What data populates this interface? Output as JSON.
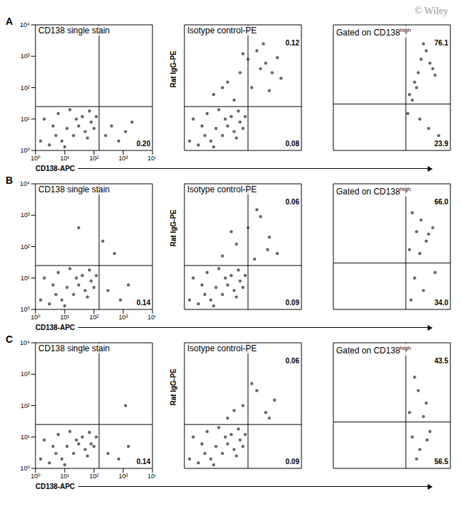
{
  "watermark": "© Wiley",
  "panel_labels": [
    "A",
    "B",
    "C"
  ],
  "chart_data": [
    {
      "type": "scatter",
      "title": "CD138 single stain",
      "x_label": "CD138-APC",
      "log": true,
      "color": "#333333",
      "xlim": [
        1,
        10000
      ],
      "ylim": [
        1,
        10000
      ],
      "xticks": [
        {
          "value": 1,
          "label": "10⁰"
        },
        {
          "value": 10,
          "label": "10¹"
        },
        {
          "value": 100,
          "label": "10²"
        },
        {
          "value": 1000,
          "label": "10³"
        },
        {
          "value": 10000,
          "label": "10⁴"
        }
      ],
      "yticks": [
        {
          "value": 1,
          "label": "10⁰"
        },
        {
          "value": 10,
          "label": "10¹"
        },
        {
          "value": 100,
          "label": "10²"
        },
        {
          "value": 1000,
          "label": "10³"
        },
        {
          "value": 10000,
          "label": "10⁴"
        }
      ],
      "gates": {
        "x": 150,
        "y": 25
      },
      "quadrant_values": {
        "lower_right": {
          "value": 0.2,
          "label": "0.20"
        }
      },
      "x": [
        1.5,
        3,
        5,
        8,
        12,
        20,
        30,
        50,
        80,
        120,
        2,
        6,
        15,
        40,
        70,
        10,
        25,
        100,
        4,
        60,
        250,
        400,
        700,
        1200,
        2000
      ],
      "y": [
        2,
        1.5,
        3,
        2,
        5,
        3,
        6,
        4,
        8,
        12,
        10,
        15,
        20,
        12,
        18,
        1.3,
        10,
        5,
        6,
        2.5,
        3,
        6,
        2,
        4,
        8
      ]
    },
    {
      "type": "scatter",
      "title": "Isotype control-PE",
      "y_label": "Rat IgG-PE",
      "log": true,
      "tick_labels": false,
      "color": "#333333",
      "xlim": [
        1,
        10000
      ],
      "ylim": [
        1,
        10000
      ],
      "xticks": [
        1,
        10,
        100,
        1000,
        10000
      ],
      "yticks": [
        1,
        10,
        100,
        1000,
        10000
      ],
      "gates": {
        "x": 150,
        "y": 25
      },
      "quadrant_values": {
        "upper_right": 0.12,
        "lower_right": 0.08
      },
      "x": [
        1.5,
        3,
        5,
        8,
        12,
        20,
        30,
        50,
        80,
        120,
        2,
        6,
        15,
        40,
        70,
        10,
        25,
        100,
        4,
        60,
        10,
        30,
        80,
        150,
        300,
        600,
        1000,
        2000,
        50,
        200,
        500,
        1500,
        20,
        100,
        400,
        800
      ],
      "y": [
        2,
        1.5,
        3,
        2,
        5,
        3,
        6,
        4,
        8,
        12,
        10,
        15,
        20,
        12,
        18,
        1.3,
        10,
        5,
        6,
        2.5,
        60,
        150,
        300,
        800,
        1500,
        600,
        300,
        200,
        40,
        100,
        2500,
        900,
        100,
        1200,
        400,
        80
      ]
    },
    {
      "type": "scatter",
      "title": "Gated on CD138",
      "title_superscript": "high",
      "log": true,
      "tick_labels": false,
      "color": "#333333",
      "xlim": [
        1,
        10000
      ],
      "ylim": [
        1,
        10000
      ],
      "xticks": [
        1,
        10,
        100,
        1000,
        10000
      ],
      "yticks": [
        1,
        10,
        100,
        1000,
        10000
      ],
      "gates": {
        "x": 300,
        "y": 30
      },
      "quadrant_values": {
        "upper_right": 76.1,
        "lower_right": 23.9
      },
      "x": [
        400,
        600,
        800,
        1000,
        1500,
        2000,
        3000,
        500,
        700,
        1200,
        2500,
        900,
        1800,
        350,
        4000
      ],
      "y": [
        60,
        150,
        300,
        800,
        1500,
        600,
        250,
        40,
        100,
        2500,
        400,
        10,
        5,
        15,
        3
      ]
    },
    {
      "type": "scatter",
      "title": "CD138 single stain",
      "x_label": "CD138-APC",
      "log": true,
      "color": "#333333",
      "xlim": [
        1,
        10000
      ],
      "ylim": [
        1,
        10000
      ],
      "xticks": [
        {
          "value": 1,
          "label": "10⁰"
        },
        {
          "value": 10,
          "label": "10¹"
        },
        {
          "value": 100,
          "label": "10²"
        },
        {
          "value": 1000,
          "label": "10³"
        },
        {
          "value": 10000,
          "label": "10⁴"
        }
      ],
      "yticks": [
        {
          "value": 1,
          "label": "10⁰"
        },
        {
          "value": 10,
          "label": "10¹"
        },
        {
          "value": 100,
          "label": "10²"
        },
        {
          "value": 1000,
          "label": "10³"
        },
        {
          "value": 10000,
          "label": "10⁴"
        }
      ],
      "gates": {
        "x": 150,
        "y": 25
      },
      "quadrant_values": {
        "lower_right": 0.14
      },
      "x": [
        1.5,
        3,
        5,
        8,
        12,
        20,
        30,
        50,
        80,
        120,
        2,
        6,
        15,
        40,
        70,
        10,
        25,
        100,
        4,
        60,
        300,
        800,
        1500,
        30,
        200,
        500
      ],
      "y": [
        2,
        1.5,
        3,
        2,
        5,
        3,
        6,
        4,
        8,
        12,
        10,
        15,
        20,
        12,
        18,
        1.3,
        10,
        5,
        6,
        2.5,
        4,
        2,
        6,
        400,
        150,
        60
      ]
    },
    {
      "type": "scatter",
      "title": "Isotype control-PE",
      "y_label": "Rat IgG-PE",
      "log": true,
      "tick_labels": false,
      "color": "#333333",
      "xlim": [
        1,
        10000
      ],
      "ylim": [
        1,
        10000
      ],
      "xticks": [
        1,
        10,
        100,
        1000,
        10000
      ],
      "yticks": [
        1,
        10,
        100,
        1000,
        10000
      ],
      "gates": {
        "x": 150,
        "y": 25
      },
      "quadrant_values": {
        "upper_right": 0.06,
        "lower_right": 0.09
      },
      "x": [
        1.5,
        3,
        5,
        8,
        12,
        20,
        30,
        50,
        80,
        120,
        2,
        6,
        15,
        40,
        70,
        10,
        25,
        100,
        4,
        60,
        20,
        60,
        150,
        400,
        800,
        1500,
        300,
        40,
        700,
        250
      ],
      "y": [
        2,
        1.5,
        3,
        2,
        5,
        3,
        6,
        4,
        8,
        12,
        10,
        15,
        20,
        12,
        18,
        1.3,
        10,
        5,
        6,
        2.5,
        50,
        120,
        400,
        900,
        200,
        60,
        1500,
        300,
        80,
        40
      ]
    },
    {
      "type": "scatter",
      "title": "Gated on CD138",
      "title_superscript": "high",
      "log": true,
      "tick_labels": false,
      "color": "#333333",
      "xlim": [
        1,
        10000
      ],
      "ylim": [
        1,
        10000
      ],
      "xticks": [
        1,
        10,
        100,
        1000,
        10000
      ],
      "yticks": [
        1,
        10,
        100,
        1000,
        10000
      ],
      "gates": {
        "x": 300,
        "y": 30
      },
      "quadrant_values": {
        "upper_right": {
          "value": 66,
          "label": "66.0"
        },
        "lower_right": {
          "value": 34,
          "label": "34.0"
        }
      },
      "x": [
        400,
        700,
        1000,
        1500,
        2500,
        500,
        900,
        1800,
        600,
        1200,
        3000,
        450
      ],
      "y": [
        80,
        300,
        700,
        150,
        400,
        1200,
        60,
        250,
        10,
        4,
        15,
        2
      ]
    },
    {
      "type": "scatter",
      "title": "CD138 single stain",
      "x_label": "CD138-APC",
      "log": true,
      "color": "#333333",
      "xlim": [
        1,
        10000
      ],
      "ylim": [
        1,
        10000
      ],
      "xticks": [
        {
          "value": 1,
          "label": "10⁰"
        },
        {
          "value": 10,
          "label": "10¹"
        },
        {
          "value": 100,
          "label": "10²"
        },
        {
          "value": 1000,
          "label": "10³"
        },
        {
          "value": 10000,
          "label": "10⁴"
        }
      ],
      "yticks": [
        {
          "value": 1,
          "label": "10⁰"
        },
        {
          "value": 10,
          "label": "10¹"
        },
        {
          "value": 100,
          "label": "10²"
        },
        {
          "value": 1000,
          "label": "10³"
        },
        {
          "value": 10000,
          "label": "10⁴"
        }
      ],
      "gates": {
        "x": 150,
        "y": 25
      },
      "quadrant_values": {
        "lower_right": 0.14
      },
      "x": [
        1.5,
        3,
        5,
        8,
        12,
        20,
        30,
        50,
        80,
        120,
        2,
        6,
        15,
        40,
        70,
        10,
        25,
        100,
        4,
        60,
        300,
        700,
        1500,
        1200
      ],
      "y": [
        2,
        1.5,
        3,
        2,
        5,
        3,
        6,
        4,
        6,
        10,
        8,
        12,
        15,
        10,
        14,
        1.3,
        8,
        5,
        5,
        2.5,
        3,
        2,
        5,
        100
      ]
    },
    {
      "type": "scatter",
      "title": "Isotype control-PE",
      "y_label": "Rat IgG-PE",
      "log": true,
      "tick_labels": false,
      "color": "#333333",
      "xlim": [
        1,
        10000
      ],
      "ylim": [
        1,
        10000
      ],
      "xticks": [
        1,
        10,
        100,
        1000,
        10000
      ],
      "yticks": [
        1,
        10,
        100,
        1000,
        10000
      ],
      "gates": {
        "x": 150,
        "y": 25
      },
      "quadrant_values": {
        "upper_right": 0.06,
        "lower_right": 0.09
      },
      "x": [
        1.5,
        3,
        5,
        8,
        12,
        20,
        30,
        50,
        80,
        120,
        2,
        6,
        15,
        40,
        70,
        10,
        25,
        100,
        4,
        60,
        30,
        100,
        300,
        600,
        1200,
        200,
        50,
        800
      ],
      "y": [
        2,
        1.5,
        3,
        2,
        5,
        3,
        6,
        4,
        8,
        12,
        10,
        15,
        20,
        12,
        18,
        1.3,
        10,
        5,
        6,
        2.5,
        40,
        100,
        300,
        60,
        150,
        500,
        70,
        40
      ]
    },
    {
      "type": "scatter",
      "title": "Gated on CD138",
      "title_superscript": "high",
      "log": true,
      "tick_labels": false,
      "color": "#333333",
      "xlim": [
        1,
        10000
      ],
      "ylim": [
        1,
        10000
      ],
      "xticks": [
        1,
        10,
        100,
        1000,
        10000
      ],
      "yticks": [
        1,
        10,
        100,
        1000,
        10000
      ],
      "gates": {
        "x": 300,
        "y": 30
      },
      "quadrant_values": {
        "upper_right": 43.5,
        "lower_right": 56.5
      },
      "x": [
        400,
        800,
        1500,
        600,
        1200,
        500,
        900,
        2000,
        700,
        1600
      ],
      "y": [
        60,
        300,
        120,
        800,
        45,
        10,
        4,
        15,
        2,
        8
      ]
    }
  ]
}
